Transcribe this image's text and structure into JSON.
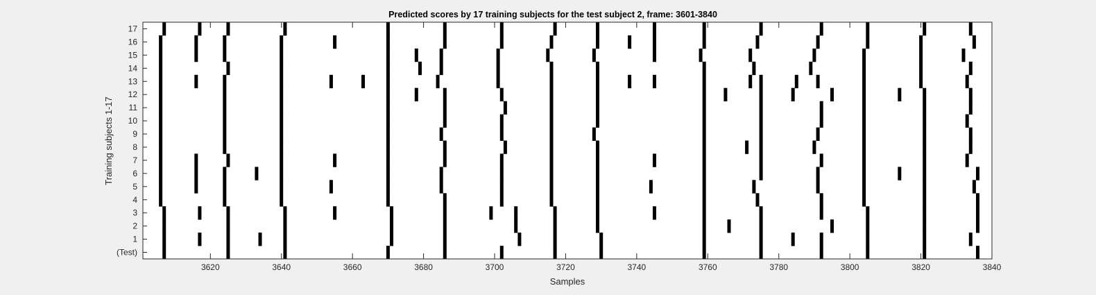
{
  "chart_data": {
    "type": "heatmap",
    "title": "Predicted scores by 17 training subjects for the test subject 2, frame: 3601-3840",
    "xlabel": "Samples",
    "ylabel": "Training subjects 1-17",
    "xlim": [
      3601,
      3840
    ],
    "xticks": [
      3620,
      3640,
      3660,
      3680,
      3700,
      3720,
      3740,
      3760,
      3780,
      3800,
      3820,
      3840
    ],
    "yticklabels": [
      "(Test)",
      "1",
      "2",
      "3",
      "4",
      "5",
      "6",
      "7",
      "8",
      "9",
      "10",
      "11",
      "12",
      "13",
      "14",
      "15",
      "16",
      "17"
    ],
    "colors": {
      "mark": "#000000",
      "background": "#ffffff",
      "figure": "#f0f0f0"
    },
    "grid": false,
    "rows": [
      {
        "label": "(Test)",
        "samples": [
          3607,
          3625,
          3641,
          3670,
          3686,
          3702,
          3717,
          3730,
          3759,
          3775,
          3792,
          3805,
          3821,
          3836
        ]
      },
      {
        "label": "1",
        "samples": [
          3607,
          3617,
          3625,
          3634,
          3641,
          3671,
          3686,
          3707,
          3717,
          3730,
          3759,
          3775,
          3784,
          3792,
          3805,
          3821,
          3834
        ]
      },
      {
        "label": "2",
        "samples": [
          3607,
          3625,
          3641,
          3671,
          3686,
          3706,
          3717,
          3729,
          3759,
          3766,
          3775,
          3795,
          3805,
          3821,
          3836
        ]
      },
      {
        "label": "3",
        "samples": [
          3607,
          3617,
          3625,
          3641,
          3655,
          3671,
          3686,
          3699,
          3706,
          3717,
          3729,
          3745,
          3759,
          3775,
          3792,
          3805,
          3821,
          3836
        ]
      },
      {
        "label": "4",
        "samples": [
          3606,
          3624,
          3640,
          3670,
          3686,
          3702,
          3716,
          3729,
          3759,
          3774,
          3792,
          3804,
          3821,
          3836
        ]
      },
      {
        "label": "5",
        "samples": [
          3606,
          3616,
          3624,
          3640,
          3654,
          3670,
          3685,
          3702,
          3716,
          3729,
          3744,
          3759,
          3773,
          3791,
          3804,
          3821,
          3835
        ]
      },
      {
        "label": "6",
        "samples": [
          3606,
          3616,
          3624,
          3633,
          3640,
          3670,
          3685,
          3702,
          3716,
          3729,
          3759,
          3775,
          3791,
          3804,
          3814,
          3821,
          3836
        ]
      },
      {
        "label": "7",
        "samples": [
          3606,
          3616,
          3625,
          3640,
          3655,
          3670,
          3686,
          3702,
          3716,
          3729,
          3745,
          3759,
          3775,
          3792,
          3804,
          3821,
          3833
        ]
      },
      {
        "label": "8",
        "samples": [
          3606,
          3624,
          3640,
          3670,
          3686,
          3703,
          3716,
          3729,
          3759,
          3771,
          3775,
          3790,
          3804,
          3821,
          3834
        ]
      },
      {
        "label": "9",
        "samples": [
          3606,
          3624,
          3640,
          3670,
          3685,
          3702,
          3716,
          3728,
          3759,
          3775,
          3791,
          3804,
          3821,
          3834
        ]
      },
      {
        "label": "10",
        "samples": [
          3606,
          3624,
          3640,
          3670,
          3686,
          3702,
          3716,
          3729,
          3759,
          3775,
          3792,
          3804,
          3821,
          3833
        ]
      },
      {
        "label": "11",
        "samples": [
          3606,
          3624,
          3640,
          3670,
          3686,
          3703,
          3716,
          3729,
          3759,
          3775,
          3792,
          3804,
          3821,
          3834
        ]
      },
      {
        "label": "12",
        "samples": [
          3606,
          3624,
          3640,
          3670,
          3678,
          3686,
          3702,
          3716,
          3729,
          3759,
          3765,
          3775,
          3784,
          3795,
          3804,
          3814,
          3821,
          3834
        ]
      },
      {
        "label": "13",
        "samples": [
          3606,
          3616,
          3624,
          3640,
          3654,
          3663,
          3670,
          3684,
          3701,
          3716,
          3729,
          3738,
          3745,
          3759,
          3772,
          3775,
          3785,
          3791,
          3804,
          3820,
          3833
        ]
      },
      {
        "label": "14",
        "samples": [
          3606,
          3625,
          3640,
          3670,
          3679,
          3685,
          3701,
          3716,
          3729,
          3759,
          3773,
          3789,
          3804,
          3820,
          3834
        ]
      },
      {
        "label": "15",
        "samples": [
          3606,
          3616,
          3624,
          3640,
          3670,
          3678,
          3685,
          3701,
          3715,
          3728,
          3745,
          3758,
          3772,
          3790,
          3804,
          3820,
          3832
        ]
      },
      {
        "label": "16",
        "samples": [
          3606,
          3616,
          3624,
          3640,
          3655,
          3670,
          3686,
          3702,
          3716,
          3729,
          3738,
          3745,
          3759,
          3774,
          3791,
          3805,
          3820,
          3835
        ]
      },
      {
        "label": "17",
        "samples": [
          3607,
          3617,
          3625,
          3641,
          3670,
          3686,
          3702,
          3717,
          3729,
          3745,
          3759,
          3775,
          3792,
          3805,
          3821,
          3834
        ]
      }
    ]
  }
}
